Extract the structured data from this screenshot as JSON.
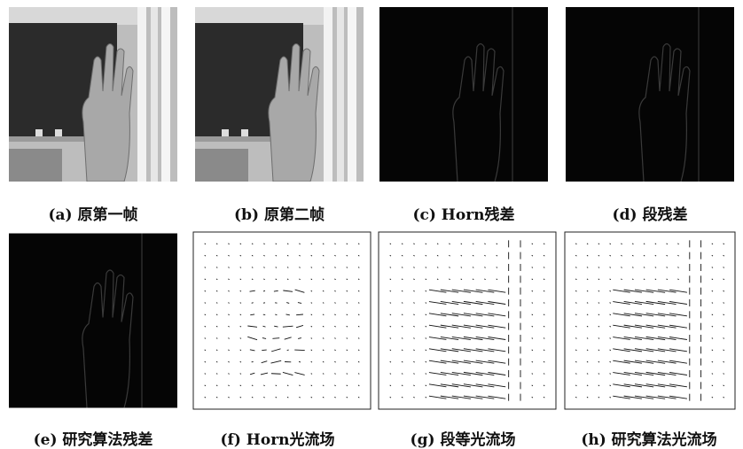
{
  "panels": [
    {
      "caption": "(a) 原第一帧"
    },
    {
      "caption": "(b) 原第二帧"
    },
    {
      "caption": "(c) Horn残差"
    },
    {
      "caption": "(d) 段残差"
    },
    {
      "caption": "(e) 研究算法残差"
    },
    {
      "caption": "(f) Horn光流场"
    },
    {
      "caption": "(g) 段等光流场"
    },
    {
      "caption": "(h) 研究算法光流场"
    }
  ]
}
